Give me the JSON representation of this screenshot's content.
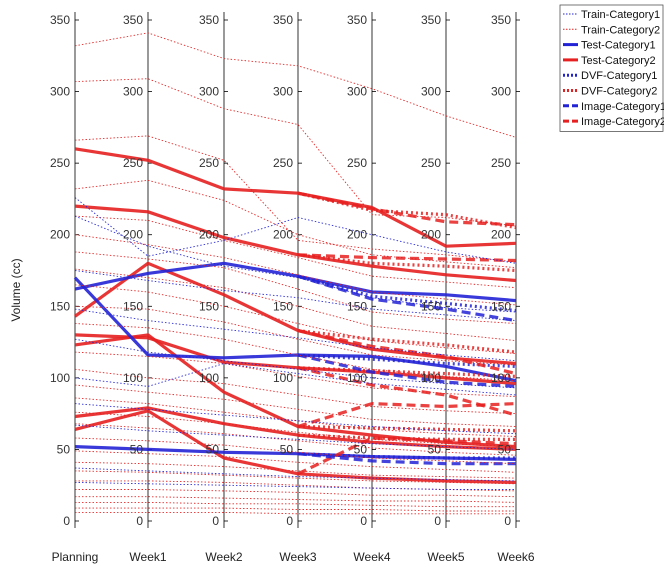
{
  "chart_data": {
    "type": "line",
    "title": "",
    "xlabel": "",
    "ylabel": "Volume (cc)",
    "categories": [
      "Planning",
      "Week1",
      "Week2",
      "Week3",
      "Week4",
      "Week5",
      "Week6"
    ],
    "ylim": [
      0,
      350
    ],
    "yticks": [
      0,
      50,
      100,
      150,
      200,
      250,
      300,
      350
    ],
    "grid": false,
    "legend_position": "top-right",
    "colors": {
      "category1": "#2323d6",
      "category2": "#e62020"
    },
    "legend": [
      {
        "label": "Train-Category1",
        "color": "#2323d6",
        "style": "dotted-thin"
      },
      {
        "label": "Train-Category2",
        "color": "#e62020",
        "style": "dotted-thin"
      },
      {
        "label": "Test-Category1",
        "color": "#2323d6",
        "style": "solid"
      },
      {
        "label": "Test-Category2",
        "color": "#e62020",
        "style": "solid"
      },
      {
        "label": "DVF-Category1",
        "color": "#2323d6",
        "style": "dotted-thick"
      },
      {
        "label": "DVF-Category2",
        "color": "#e62020",
        "style": "dotted-thick"
      },
      {
        "label": "Image-Category1",
        "color": "#2323d6",
        "style": "dashed"
      },
      {
        "label": "Image-Category2",
        "color": "#e62020",
        "style": "dashed"
      }
    ],
    "series": [
      {
        "name": "Test-Category2 A",
        "group": "test",
        "category": 2,
        "values": [
          260,
          252,
          232,
          229,
          219,
          192,
          194
        ]
      },
      {
        "name": "Test-Category2 B",
        "group": "test",
        "category": 2,
        "values": [
          220,
          216,
          198,
          186,
          178,
          172,
          168
        ]
      },
      {
        "name": "Test-Category2 C",
        "group": "test",
        "category": 2,
        "values": [
          143,
          180,
          158,
          133,
          120,
          114,
          110
        ]
      },
      {
        "name": "Test-Category2 D",
        "group": "test",
        "category": 2,
        "values": [
          130,
          128,
          111,
          107,
          104,
          100,
          96
        ]
      },
      {
        "name": "Test-Category2 E",
        "group": "test",
        "category": 2,
        "values": [
          123,
          130,
          90,
          66,
          60,
          55,
          52
        ]
      },
      {
        "name": "Test-Category2 F",
        "group": "test",
        "category": 2,
        "values": [
          73,
          79,
          68,
          60,
          55,
          52,
          50
        ]
      },
      {
        "name": "Test-Category2 G",
        "group": "test",
        "category": 2,
        "values": [
          64,
          77,
          44,
          33,
          30,
          28,
          27
        ]
      },
      {
        "name": "Test-Category1 A",
        "group": "test",
        "category": 1,
        "values": [
          162,
          173,
          180,
          171,
          160,
          158,
          154
        ]
      },
      {
        "name": "Test-Category1 B",
        "group": "test",
        "category": 1,
        "values": [
          170,
          116,
          114,
          116,
          115,
          108,
          98
        ]
      },
      {
        "name": "Test-Category1 C",
        "group": "test",
        "category": 1,
        "values": [
          52,
          50,
          48,
          47,
          45,
          44,
          43
        ]
      },
      {
        "name": "DVF-Category2 A",
        "group": "dvf",
        "category": 2,
        "values": [
          null,
          null,
          null,
          229,
          217,
          214,
          205
        ]
      },
      {
        "name": "DVF-Category2 B",
        "group": "dvf",
        "category": 2,
        "values": [
          null,
          null,
          null,
          186,
          180,
          178,
          175
        ]
      },
      {
        "name": "DVF-Category2 C",
        "group": "dvf",
        "category": 2,
        "values": [
          null,
          null,
          null,
          133,
          127,
          123,
          118
        ]
      },
      {
        "name": "DVF-Category2 D",
        "group": "dvf",
        "category": 2,
        "values": [
          null,
          null,
          null,
          107,
          105,
          103,
          101
        ]
      },
      {
        "name": "DVF-Category2 E",
        "group": "dvf",
        "category": 2,
        "values": [
          null,
          null,
          null,
          66,
          65,
          64,
          63
        ]
      },
      {
        "name": "DVF-Category2 F",
        "group": "dvf",
        "category": 2,
        "values": [
          null,
          null,
          null,
          60,
          58,
          57,
          57
        ]
      },
      {
        "name": "DVF-Category1 A",
        "group": "dvf",
        "category": 1,
        "values": [
          null,
          null,
          null,
          171,
          157,
          152,
          147
        ]
      },
      {
        "name": "DVF-Category1 B",
        "group": "dvf",
        "category": 1,
        "values": [
          null,
          null,
          null,
          116,
          113,
          110,
          108
        ]
      },
      {
        "name": "DVF-Category1 C",
        "group": "dvf",
        "category": 1,
        "values": [
          null,
          null,
          null,
          47,
          45,
          44,
          44
        ]
      },
      {
        "name": "Image-Category2 A",
        "group": "image",
        "category": 2,
        "values": [
          null,
          null,
          null,
          229,
          218,
          209,
          207
        ]
      },
      {
        "name": "Image-Category2 B",
        "group": "image",
        "category": 2,
        "values": [
          null,
          null,
          null,
          186,
          184,
          183,
          182
        ]
      },
      {
        "name": "Image-Category2 C",
        "group": "image",
        "category": 2,
        "values": [
          null,
          null,
          null,
          133,
          122,
          115,
          103
        ]
      },
      {
        "name": "Image-Category2 D",
        "group": "image",
        "category": 2,
        "values": [
          null,
          null,
          null,
          107,
          95,
          88,
          74
        ]
      },
      {
        "name": "Image-Category2 E",
        "group": "image",
        "category": 2,
        "values": [
          null,
          null,
          null,
          66,
          82,
          80,
          82
        ]
      },
      {
        "name": "Image-Category2 F",
        "group": "image",
        "category": 2,
        "values": [
          null,
          null,
          null,
          33,
          58,
          56,
          54
        ]
      },
      {
        "name": "Image-Category1 A",
        "group": "image",
        "category": 1,
        "values": [
          null,
          null,
          null,
          171,
          155,
          148,
          140
        ]
      },
      {
        "name": "Image-Category1 B",
        "group": "image",
        "category": 1,
        "values": [
          null,
          null,
          null,
          116,
          104,
          97,
          94
        ]
      },
      {
        "name": "Image-Category1 C",
        "group": "image",
        "category": 1,
        "values": [
          null,
          null,
          null,
          47,
          42,
          40,
          40
        ]
      },
      {
        "name": "Train-Category2 1",
        "group": "train",
        "category": 2,
        "values": [
          332,
          341,
          323,
          318,
          302,
          283,
          268
        ]
      },
      {
        "name": "Train-Category2 2",
        "group": "train",
        "category": 2,
        "values": [
          307,
          309,
          288,
          277,
          214,
          212,
          206
        ]
      },
      {
        "name": "Train-Category2 3",
        "group": "train",
        "category": 2,
        "values": [
          266,
          269,
          252,
          196,
          190,
          186,
          181
        ]
      },
      {
        "name": "Train-Category2 4",
        "group": "train",
        "category": 2,
        "values": [
          232,
          238,
          224,
          200,
          186,
          181,
          177
        ]
      },
      {
        "name": "Train-Category2 5",
        "group": "train",
        "category": 2,
        "values": [
          213,
          210,
          196,
          184,
          171,
          167,
          163
        ]
      },
      {
        "name": "Train-Category2 6",
        "group": "train",
        "category": 2,
        "values": [
          200,
          193,
          184,
          172,
          160,
          155,
          151
        ]
      },
      {
        "name": "Train-Category2 7",
        "group": "train",
        "category": 2,
        "values": [
          188,
          183,
          177,
          162,
          146,
          141,
          138
        ]
      },
      {
        "name": "Train-Category2 8",
        "group": "train",
        "category": 2,
        "values": [
          176,
          170,
          163,
          150,
          136,
          131,
          126
        ]
      },
      {
        "name": "Train-Category2 9",
        "group": "train",
        "category": 2,
        "values": [
          165,
          160,
          150,
          138,
          126,
          121,
          117
        ]
      },
      {
        "name": "Train-Category2 10",
        "group": "train",
        "category": 2,
        "values": [
          150,
          148,
          139,
          127,
          116,
          112,
          109
        ]
      },
      {
        "name": "Train-Category2 11",
        "group": "train",
        "category": 2,
        "values": [
          138,
          135,
          127,
          116,
          106,
          101,
          98
        ]
      },
      {
        "name": "Train-Category2 12",
        "group": "train",
        "category": 2,
        "values": [
          118,
          115,
          110,
          101,
          93,
          89,
          87
        ]
      },
      {
        "name": "Train-Category2 13",
        "group": "train",
        "category": 2,
        "values": [
          106,
          100,
          96,
          88,
          80,
          77,
          75
        ]
      },
      {
        "name": "Train-Category2 14",
        "group": "train",
        "category": 2,
        "values": [
          95,
          90,
          85,
          78,
          71,
          68,
          66
        ]
      },
      {
        "name": "Train-Category2 15",
        "group": "train",
        "category": 2,
        "values": [
          86,
          82,
          76,
          70,
          64,
          61,
          59
        ]
      },
      {
        "name": "Train-Category2 16",
        "group": "train",
        "category": 2,
        "values": [
          76,
          73,
          68,
          62,
          57,
          54,
          52
        ]
      },
      {
        "name": "Train-Category2 17",
        "group": "train",
        "category": 2,
        "values": [
          68,
          65,
          61,
          56,
          51,
          48,
          46
        ]
      },
      {
        "name": "Train-Category2 18",
        "group": "train",
        "category": 2,
        "values": [
          58,
          56,
          53,
          48,
          44,
          42,
          40
        ]
      },
      {
        "name": "Train-Category2 19",
        "group": "train",
        "category": 2,
        "values": [
          49,
          47,
          45,
          41,
          38,
          36,
          34
        ]
      },
      {
        "name": "Train-Category2 20",
        "group": "train",
        "category": 2,
        "values": [
          41,
          40,
          38,
          35,
          32,
          31,
          30
        ]
      },
      {
        "name": "Train-Category2 21",
        "group": "train",
        "category": 2,
        "values": [
          35,
          34,
          32,
          30,
          28,
          27,
          26
        ]
      },
      {
        "name": "Train-Category2 22",
        "group": "train",
        "category": 2,
        "values": [
          28,
          28,
          27,
          25,
          23,
          22,
          21
        ]
      },
      {
        "name": "Train-Category2 23",
        "group": "train",
        "category": 2,
        "values": [
          22,
          22,
          21,
          20,
          18,
          18,
          17
        ]
      },
      {
        "name": "Train-Category2 24",
        "group": "train",
        "category": 2,
        "values": [
          17,
          17,
          16,
          15,
          14,
          14,
          13
        ]
      },
      {
        "name": "Train-Category2 25",
        "group": "train",
        "category": 2,
        "values": [
          13,
          13,
          12,
          12,
          11,
          10,
          10
        ]
      },
      {
        "name": "Train-Category2 26",
        "group": "train",
        "category": 2,
        "values": [
          9,
          9,
          9,
          8,
          8,
          7,
          7
        ]
      },
      {
        "name": "Train-Category2 27",
        "group": "train",
        "category": 2,
        "values": [
          6,
          6,
          6,
          5,
          5,
          5,
          5
        ]
      },
      {
        "name": "Train-Category1 1",
        "group": "train",
        "category": 1,
        "values": [
          226,
          185,
          196,
          212,
          200,
          188,
          180
        ]
      },
      {
        "name": "Train-Category1 2",
        "group": "train",
        "category": 1,
        "values": [
          213,
          192,
          178,
          170,
          156,
          149,
          146
        ]
      },
      {
        "name": "Train-Category1 3",
        "group": "train",
        "category": 1,
        "values": [
          175,
          168,
          161,
          156,
          148,
          144,
          140
        ]
      },
      {
        "name": "Train-Category1 4",
        "group": "train",
        "category": 1,
        "values": [
          148,
          140,
          134,
          128,
          121,
          116,
          112
        ]
      },
      {
        "name": "Train-Category1 5",
        "group": "train",
        "category": 1,
        "values": [
          127,
          118,
          112,
          106,
          100,
          96,
          93
        ]
      },
      {
        "name": "Train-Category1 6",
        "group": "train",
        "category": 1,
        "values": [
          100,
          94,
          110,
          103,
          96,
          92,
          88
        ]
      },
      {
        "name": "Train-Category1 7",
        "group": "train",
        "category": 1,
        "values": [
          82,
          78,
          74,
          70,
          66,
          63,
          61
        ]
      },
      {
        "name": "Train-Category1 8",
        "group": "train",
        "category": 1,
        "values": [
          67,
          63,
          60,
          57,
          54,
          52,
          50
        ]
      },
      {
        "name": "Train-Category1 9",
        "group": "train",
        "category": 1,
        "values": [
          37,
          35,
          33,
          31,
          30,
          29,
          28
        ]
      },
      {
        "name": "Train-Category1 10",
        "group": "train",
        "category": 1,
        "values": [
          27,
          26,
          25,
          24,
          23,
          22,
          22
        ]
      }
    ]
  }
}
